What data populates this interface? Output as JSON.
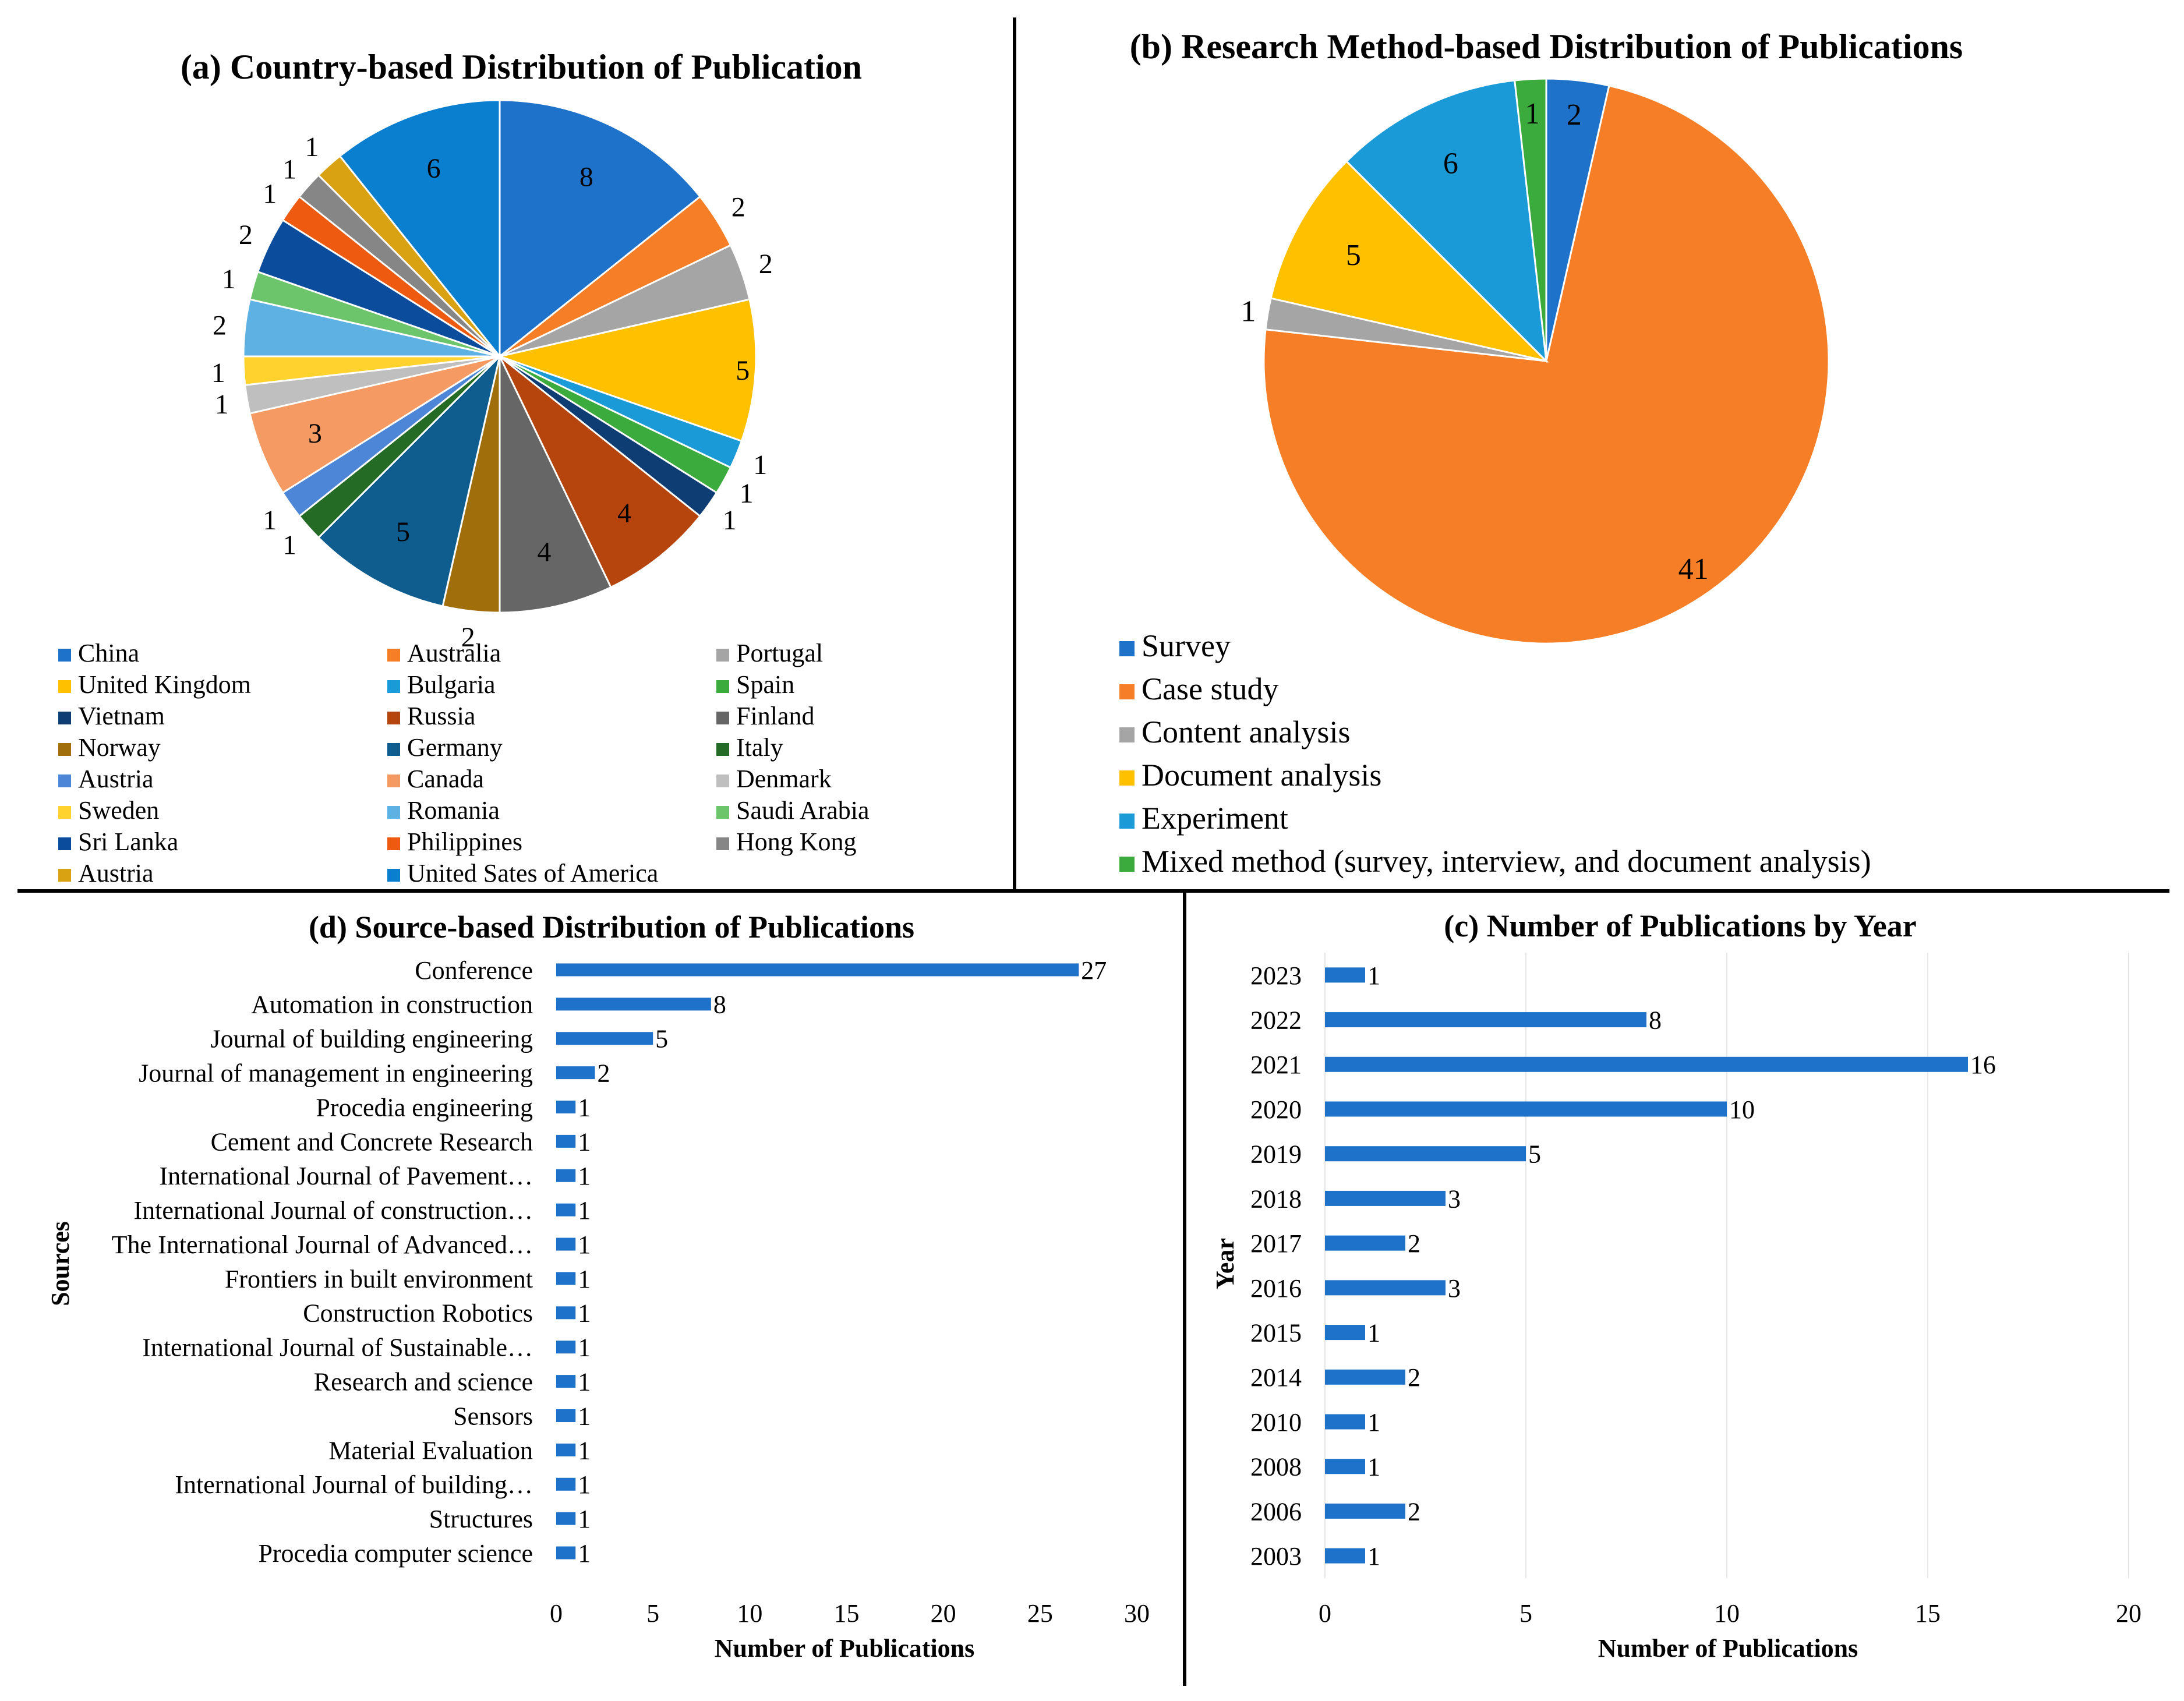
{
  "colors": {
    "ink": "#000000",
    "bar": "#1f72c9",
    "grid": "#e6e6e6",
    "divider": "#000000"
  },
  "chart_data": [
    {
      "id": "a",
      "type": "pie",
      "title": "(a) Country-based Distribution of Publication",
      "legend_position": "bottom",
      "slices": [
        {
          "label": "China",
          "value": 8,
          "color": "#1f72c9"
        },
        {
          "label": "Australia",
          "value": 2,
          "color": "#f57e26"
        },
        {
          "label": "Portugal",
          "value": 2,
          "color": "#a5a5a5"
        },
        {
          "label": "United Kingdom",
          "value": 5,
          "color": "#ffc000"
        },
        {
          "label": "Bulgaria",
          "value": 1,
          "color": "#1a9bd7"
        },
        {
          "label": "Spain",
          "value": 1,
          "color": "#3aab3c"
        },
        {
          "label": "Vietnam",
          "value": 1,
          "color": "#0d3d73"
        },
        {
          "label": "Russia",
          "value": 4,
          "color": "#b5440d"
        },
        {
          "label": "Finland",
          "value": 4,
          "color": "#666666"
        },
        {
          "label": "Norway",
          "value": 2,
          "color": "#a06e0b"
        },
        {
          "label": "Germany",
          "value": 5,
          "color": "#0f5c8f"
        },
        {
          "label": "Italy",
          "value": 1,
          "color": "#246b25"
        },
        {
          "label": "Austria",
          "value": 1,
          "color": "#4d86d6"
        },
        {
          "label": "Canada",
          "value": 3,
          "color": "#f59a62"
        },
        {
          "label": "Denmark",
          "value": 1,
          "color": "#bfbfbf"
        },
        {
          "label": "Sweden",
          "value": 1,
          "color": "#ffd22e"
        },
        {
          "label": "Romania",
          "value": 2,
          "color": "#5db2e3"
        },
        {
          "label": "Saudi Arabia",
          "value": 1,
          "color": "#6cc46b"
        },
        {
          "label": "Sri Lanka",
          "value": 2,
          "color": "#0b4d9c"
        },
        {
          "label": "Philippines",
          "value": 1,
          "color": "#ee5a0f"
        },
        {
          "label": "Hong Kong",
          "value": 1,
          "color": "#868686"
        },
        {
          "label": "Austria",
          "value": 1,
          "color": "#d9a213"
        },
        {
          "label": "United Sates of America",
          "value": 6,
          "color": "#0a7fcf"
        }
      ]
    },
    {
      "id": "b",
      "type": "pie",
      "title": "(b) Research Method-based Distribution of Publications",
      "legend_position": "bottom-left",
      "slices": [
        {
          "label": "Survey",
          "value": 2,
          "color": "#1f72c9"
        },
        {
          "label": "Case study",
          "value": 41,
          "color": "#f57e26"
        },
        {
          "label": "Content analysis",
          "value": 1,
          "color": "#a5a5a5"
        },
        {
          "label": "Document analysis",
          "value": 5,
          "color": "#ffc000"
        },
        {
          "label": "Experiment",
          "value": 6,
          "color": "#1a9bd7"
        },
        {
          "label": "Mixed method (survey, interview, and document analysis)",
          "value": 1,
          "color": "#3aab3c"
        }
      ]
    },
    {
      "id": "d",
      "type": "bar",
      "orientation": "horizontal",
      "title": "(d) Source-based Distribution of Publications",
      "xlabel": "Number of Publications",
      "ylabel": "Sources",
      "xlim": [
        0,
        30
      ],
      "xticks": [
        "0",
        "5",
        "10",
        "15",
        "20",
        "25",
        "30"
      ],
      "categories": [
        "Conference",
        "Automation in construction",
        "Journal of building engineering",
        "Journal of management in engineering",
        "Procedia engineering",
        "Cement and Concrete Research",
        "International Journal of Pavement…",
        "International Journal of construction…",
        "The International Journal of Advanced…",
        "Frontiers in built environment",
        "Construction Robotics",
        "International Journal of Sustainable…",
        "Research and science",
        "Sensors",
        "Material Evaluation",
        "International Journal of building…",
        "Structures",
        "Procedia computer science"
      ],
      "values": [
        27,
        8,
        5,
        2,
        1,
        1,
        1,
        1,
        1,
        1,
        1,
        1,
        1,
        1,
        1,
        1,
        1,
        1
      ],
      "grid": false
    },
    {
      "id": "c",
      "type": "bar",
      "orientation": "horizontal",
      "title": "(c) Number of Publications by Year",
      "xlabel": "Number of Publications",
      "ylabel": "Year",
      "xlim": [
        0,
        20
      ],
      "xticks": [
        "0",
        "5",
        "10",
        "15",
        "20"
      ],
      "categories": [
        "2023",
        "2022",
        "2021",
        "2020",
        "2019",
        "2018",
        "2017",
        "2016",
        "2015",
        "2014",
        "2010",
        "2008",
        "2006",
        "2003"
      ],
      "values": [
        1,
        8,
        16,
        10,
        5,
        3,
        2,
        3,
        1,
        2,
        1,
        1,
        2,
        1
      ],
      "grid": true
    }
  ]
}
